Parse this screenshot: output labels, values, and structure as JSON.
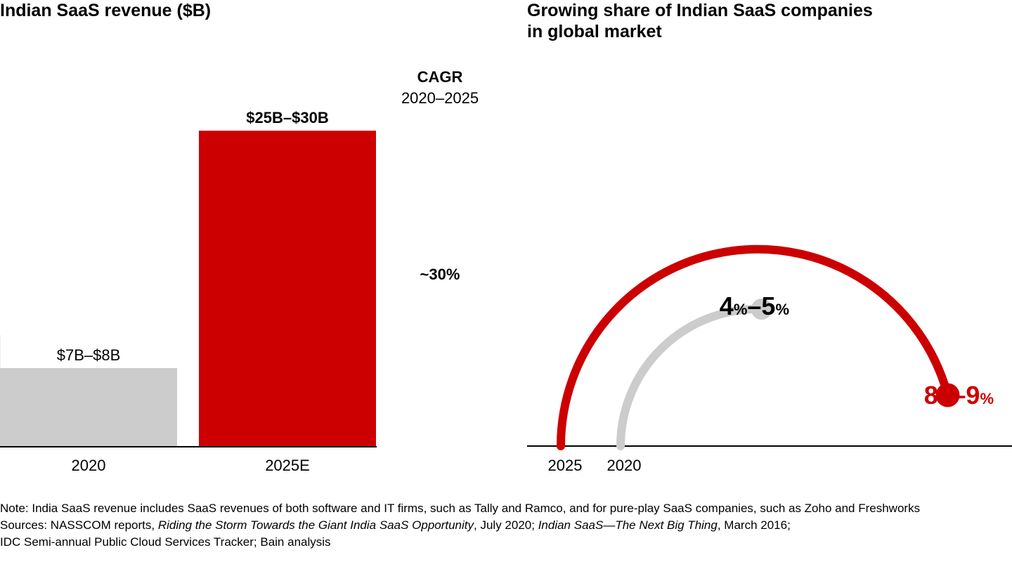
{
  "colors": {
    "bar_2020": "#cccccc",
    "bar_2025": "#cc0000",
    "arc_2025": "#cc0000",
    "arc_2020": "#cccccc",
    "axis": "#000000"
  },
  "left_chart": {
    "title": "Indian SaaS revenue ($B)",
    "cagr": {
      "label": "CAGR",
      "period": "2020–2025",
      "value": "~30%"
    }
  },
  "right_chart": {
    "title_line1": "Growing share of Indian SaaS companies",
    "title_line2": "in global market",
    "arcs": [
      {
        "year": "2025",
        "share_min": 8,
        "share_max": 9,
        "label_low": "8",
        "label_high": "9",
        "pct": "%",
        "dash": "–"
      },
      {
        "year": "2020",
        "share_min": 4,
        "share_max": 5,
        "label_low": "4",
        "label_high": "5",
        "pct": "%",
        "dash": "–"
      }
    ]
  },
  "chart_data": [
    {
      "type": "bar",
      "title": "Indian SaaS revenue ($B)",
      "categories": [
        "2020",
        "2025E"
      ],
      "series": [
        {
          "values_low": [
            7,
            25
          ],
          "values_high": [
            8,
            30
          ]
        }
      ],
      "data_labels": [
        "$7B–$8B",
        "$25B–$30B"
      ],
      "annotation": {
        "label": "CAGR",
        "period": "2020–2025",
        "value": "~30%"
      }
    },
    {
      "type": "other",
      "title": "Growing share of Indian SaaS companies in global market",
      "categories": [
        "2025",
        "2020"
      ],
      "values_low": [
        8,
        4
      ],
      "values_high": [
        9,
        5
      ],
      "unit": "%"
    }
  ],
  "notes": {
    "note": "Note: India SaaS revenue includes SaaS revenues of both software and IT firms, such as Tally and Ramco, and for pure-play SaaS companies, such as Zoho and Freshworks",
    "sources_prefix": "Sources: NASSCOM reports, ",
    "source_italic_1": "Riding the Storm Towards the Giant India SaaS Opportunity",
    "sources_mid_1": ", July 2020; ",
    "source_italic_2": "Indian SaaS—The Next Big Thing",
    "sources_mid_2": ", March 2016;",
    "sources_line2": "IDC Semi-annual Public Cloud Services Tracker; Bain analysis"
  }
}
